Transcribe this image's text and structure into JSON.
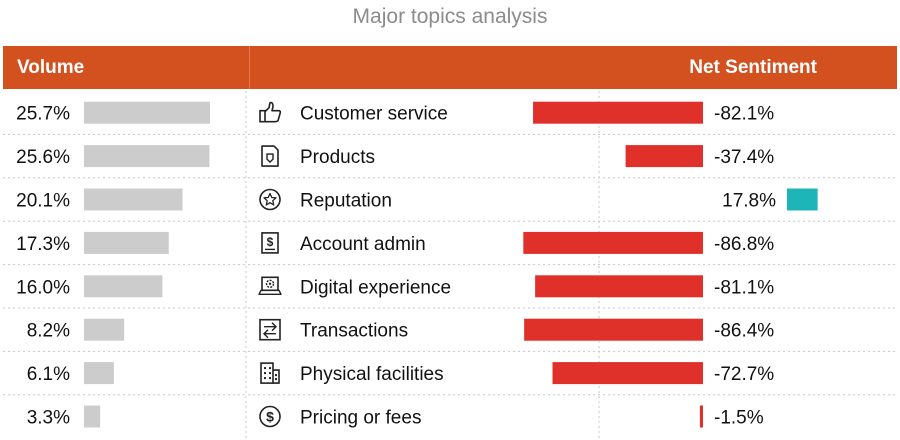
{
  "chart_data": {
    "type": "table",
    "title": "Major topics analysis",
    "columns": [
      "Volume",
      "",
      "Net Sentiment"
    ],
    "rows": [
      {
        "topic": "Customer service",
        "icon": "thumbs-up-icon",
        "volume": 25.7,
        "volume_label": "25.7%",
        "sentiment": -82.1,
        "sentiment_label": "-82.1%"
      },
      {
        "topic": "Products",
        "icon": "product-tag-icon",
        "volume": 25.6,
        "volume_label": "25.6%",
        "sentiment": -37.4,
        "sentiment_label": "-37.4%"
      },
      {
        "topic": "Reputation",
        "icon": "star-badge-icon",
        "volume": 20.1,
        "volume_label": "20.1%",
        "sentiment": 17.8,
        "sentiment_label": "17.8%"
      },
      {
        "topic": "Account admin",
        "icon": "document-dollar-icon",
        "volume": 17.3,
        "volume_label": "17.3%",
        "sentiment": -86.8,
        "sentiment_label": "-86.8%"
      },
      {
        "topic": "Digital experience",
        "icon": "laptop-gear-icon",
        "volume": 16.0,
        "volume_label": "16.0%",
        "sentiment": -81.1,
        "sentiment_label": "-81.1%"
      },
      {
        "topic": "Transactions",
        "icon": "transfer-arrows-icon",
        "volume": 8.2,
        "volume_label": "8.2%",
        "sentiment": -86.4,
        "sentiment_label": "-86.4%"
      },
      {
        "topic": "Physical facilities",
        "icon": "building-icon",
        "volume": 6.1,
        "volume_label": "6.1%",
        "sentiment": -72.7,
        "sentiment_label": "-72.7%"
      },
      {
        "topic": "Pricing or fees",
        "icon": "coin-dollar-icon",
        "volume": 3.3,
        "volume_label": "3.3%",
        "sentiment": -1.5,
        "sentiment_label": "-1.5%"
      }
    ],
    "colors": {
      "header": "#d3501f",
      "volume_bar": "#cccccc",
      "negative": "#e0302a",
      "positive": "#1eb5b8",
      "title": "#8c8c8c"
    }
  }
}
